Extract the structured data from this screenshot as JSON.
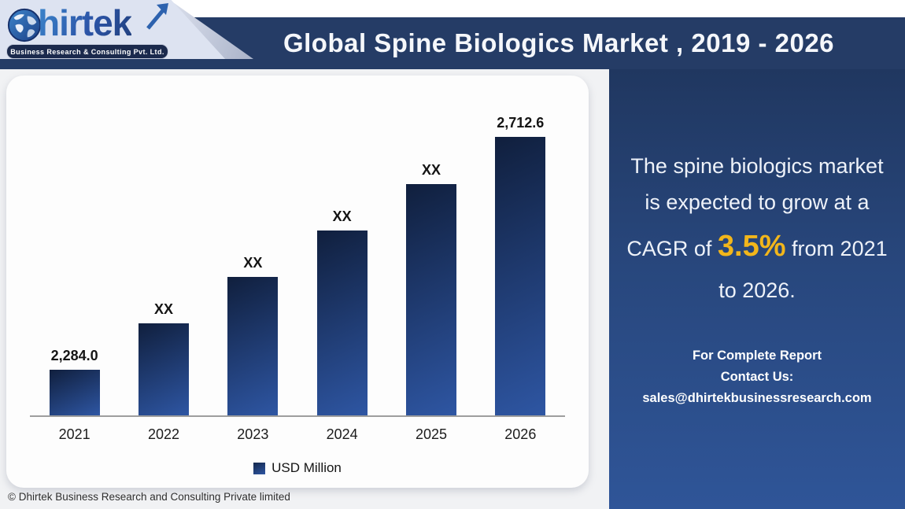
{
  "header": {
    "title": "Global Spine Biologics Market , 2019 - 2026",
    "logo": {
      "brand": "Dhirtek",
      "brand_after_globe": "hirtek",
      "tagline": "Business Research & Consulting Pvt. Ltd."
    }
  },
  "chart_data": {
    "type": "bar",
    "title": "Global Spine Biologics Market , 2019 - 2026",
    "categories": [
      "2021",
      "2022",
      "2023",
      "2024",
      "2025",
      "2026"
    ],
    "values": [
      2284.0,
      2369.7,
      2455.4,
      2541.1,
      2626.9,
      2712.6
    ],
    "bar_labels": [
      "2,284.0",
      "XX",
      "XX",
      "XX",
      "XX",
      "2,712.6"
    ],
    "xlabel": "",
    "ylabel": "",
    "ylim": [
      2200,
      2780
    ],
    "grid": false,
    "legend": [
      "USD Million"
    ],
    "legend_position": "bottom",
    "bar_color_top": "#13284a",
    "bar_color_bottom": "#2e56a3"
  },
  "sidebar": {
    "description": {
      "pre": "The spine biologics market is expected to grow at a CAGR of",
      "highlight": "3.5%",
      "post": "from 2021 to 2026."
    },
    "contact": {
      "line1": "For Complete Report",
      "line2": "Contact Us:",
      "line3": "sales@dhirtekbusinessresearch.com"
    },
    "accent_color": "#f2b61b"
  },
  "footer": {
    "copyright": "© Dhirtek Business Research and Consulting Private limited"
  }
}
